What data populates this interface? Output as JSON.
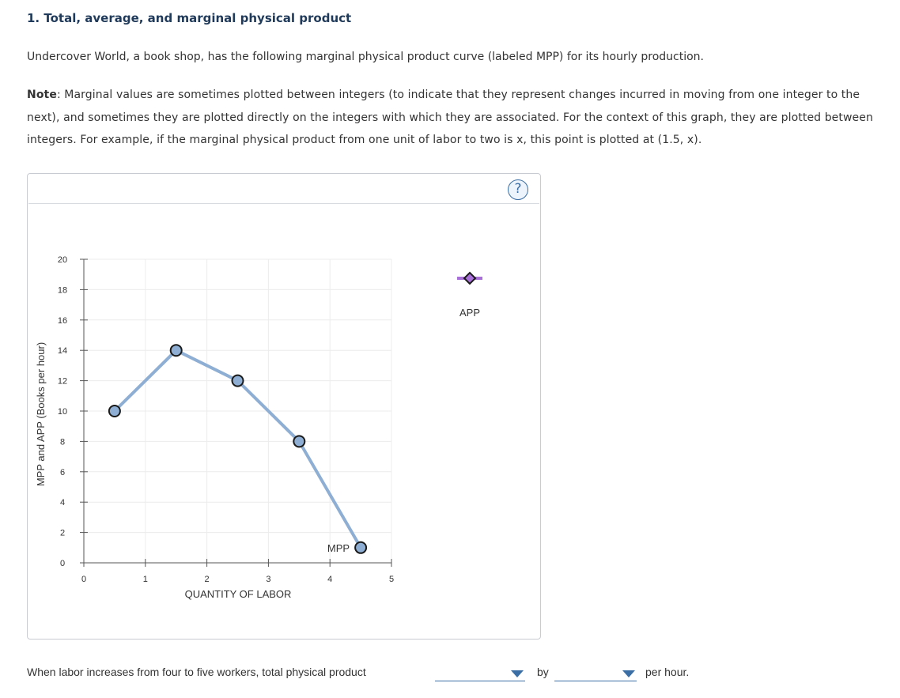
{
  "heading": "1. Total, average, and marginal physical product",
  "intro": "Undercover World, a book shop, has the following marginal physical product curve (labeled MPP) for its hourly production.",
  "note": {
    "label": "Note",
    "text": ": Marginal values are sometimes plotted between integers (to indicate that they represent changes incurred in moving from one integer to the next), and sometimes they are plotted directly on the integers with which they are associated. For the context of this graph, they are plotted between integers. For example, if the marginal physical product from one unit of labor to two is x, this point is plotted at (1.5, x)."
  },
  "help_label": "?",
  "chart_data": {
    "type": "line",
    "xlabel": "QUANTITY OF LABOR",
    "ylabel": "MPP and APP (Books per hour)",
    "xlim": [
      0,
      5
    ],
    "ylim": [
      0,
      20
    ],
    "x_ticks": [
      0,
      1,
      2,
      3,
      4,
      5
    ],
    "y_ticks": [
      0,
      2,
      4,
      6,
      8,
      10,
      12,
      14,
      16,
      18,
      20
    ],
    "grid": true,
    "series": [
      {
        "name": "MPP",
        "x": [
          0.5,
          1.5,
          2.5,
          3.5,
          4.5
        ],
        "y": [
          10,
          14,
          12,
          8,
          1
        ],
        "line_color": "#8eafd3",
        "marker": "circle",
        "marker_fill": "#8eafd3"
      }
    ],
    "legend": {
      "items": [
        {
          "label": "APP",
          "marker": "diamond",
          "color": "#a870d8",
          "line_color": "#a870d8"
        }
      ],
      "placement": "right"
    }
  },
  "question": {
    "prefix": "When labor increases from four to five workers, total physical product",
    "middle": "by",
    "suffix": "per hour.",
    "dropdown1_value": "",
    "dropdown2_value": ""
  }
}
